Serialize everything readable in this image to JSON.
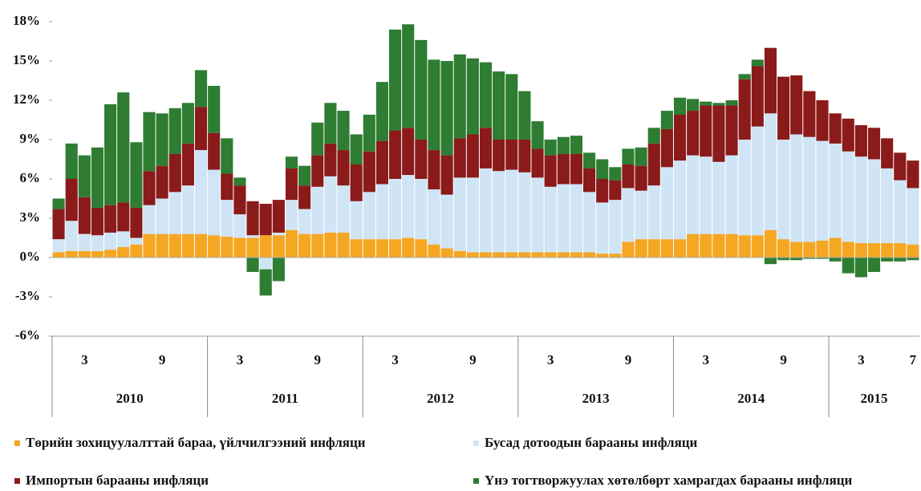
{
  "chart_data": {
    "type": "bar",
    "stacked": true,
    "categories": [
      null,
      null,
      "3",
      null,
      null,
      null,
      null,
      null,
      "9",
      null,
      null,
      null,
      null,
      null,
      "3",
      null,
      null,
      null,
      null,
      null,
      "9",
      null,
      null,
      null,
      null,
      null,
      "3",
      null,
      null,
      null,
      null,
      null,
      "9",
      null,
      null,
      null,
      null,
      null,
      "3",
      null,
      null,
      null,
      null,
      null,
      "9",
      null,
      null,
      null,
      null,
      null,
      "3",
      null,
      null,
      null,
      null,
      null,
      "9",
      null,
      null,
      null,
      null,
      null,
      "3",
      null,
      null,
      null,
      "7"
    ],
    "years": [
      "2010",
      "2011",
      "2012",
      "2013",
      "2014",
      "2015"
    ],
    "series": [
      {
        "name": "Төрийн зохицуулалттай бараа, үйлчилгээний инфляци",
        "color": "#f5a623",
        "values": [
          0.4,
          0.5,
          0.5,
          0.5,
          0.6,
          0.8,
          1.0,
          1.8,
          1.8,
          1.8,
          1.8,
          1.8,
          1.7,
          1.6,
          1.5,
          1.5,
          1.7,
          1.7,
          2.1,
          1.8,
          1.8,
          1.9,
          1.9,
          1.4,
          1.4,
          1.4,
          1.4,
          1.5,
          1.4,
          1.0,
          0.7,
          0.5,
          0.4,
          0.4,
          0.4,
          0.4,
          0.4,
          0.4,
          0.4,
          0.4,
          0.4,
          0.4,
          0.3,
          0.3,
          1.2,
          1.4,
          1.4,
          1.4,
          1.4,
          1.8,
          1.8,
          1.8,
          1.8,
          1.7,
          1.7,
          2.1,
          1.4,
          1.2,
          1.2,
          1.3,
          1.5,
          1.2,
          1.1,
          1.1,
          1.1,
          1.1,
          1.0
        ]
      },
      {
        "name": "Бусад дотоодын барааны инфляци",
        "color": "#cfe5f6",
        "values": [
          1.0,
          2.3,
          1.3,
          1.2,
          1.3,
          1.2,
          0.5,
          2.2,
          2.7,
          3.2,
          3.7,
          6.4,
          5.0,
          2.8,
          1.8,
          0.2,
          -0.9,
          0.2,
          2.3,
          1.9,
          3.6,
          4.3,
          3.6,
          2.9,
          3.6,
          4.2,
          4.6,
          4.8,
          4.6,
          4.2,
          4.1,
          5.6,
          5.7,
          6.4,
          6.2,
          6.3,
          6.1,
          5.7,
          5.0,
          5.2,
          5.2,
          4.6,
          3.9,
          4.1,
          4.1,
          3.7,
          4.1,
          5.5,
          6.0,
          6.0,
          5.9,
          5.5,
          6.0,
          7.3,
          8.3,
          8.9,
          7.6,
          8.2,
          8.0,
          7.6,
          7.2,
          6.9,
          6.6,
          6.4,
          5.7,
          4.8,
          4.3
        ]
      },
      {
        "name": "Импортын барааны инфляци",
        "color": "#8b1a1a",
        "values": [
          2.3,
          3.2,
          2.8,
          2.1,
          2.1,
          2.2,
          2.3,
          2.6,
          2.5,
          2.9,
          3.2,
          3.3,
          2.8,
          2.0,
          2.2,
          2.6,
          2.4,
          2.5,
          2.4,
          1.8,
          2.4,
          2.5,
          2.7,
          2.8,
          3.1,
          3.3,
          3.7,
          3.6,
          3.0,
          3.0,
          3.0,
          3.0,
          3.3,
          3.1,
          2.4,
          2.3,
          2.5,
          2.2,
          2.4,
          2.3,
          2.3,
          1.8,
          1.8,
          1.5,
          1.8,
          1.9,
          3.2,
          2.9,
          3.5,
          3.4,
          3.9,
          4.3,
          3.8,
          4.6,
          4.6,
          5.0,
          4.8,
          4.5,
          3.5,
          3.1,
          2.3,
          2.5,
          2.4,
          2.4,
          2.3,
          2.1,
          2.1
        ]
      },
      {
        "name": "Үнэ тогтворжуулах хөтөлбөрт хамрагдах барааны инфляци",
        "color": "#2e7d32",
        "values": [
          0.8,
          2.7,
          3.2,
          4.6,
          7.7,
          8.4,
          5.0,
          4.5,
          4.0,
          3.5,
          3.1,
          2.8,
          3.6,
          2.7,
          0.6,
          -1.1,
          -2.0,
          -1.8,
          0.9,
          1.5,
          2.5,
          3.1,
          3.0,
          2.3,
          2.8,
          4.5,
          7.7,
          7.9,
          7.6,
          6.9,
          7.2,
          6.4,
          5.8,
          5.0,
          5.2,
          5.0,
          3.7,
          2.1,
          1.2,
          1.3,
          1.4,
          1.2,
          1.5,
          1.0,
          1.2,
          1.4,
          1.2,
          1.4,
          1.3,
          0.9,
          0.3,
          0.2,
          0.4,
          0.4,
          0.5,
          -0.5,
          -0.2,
          -0.2,
          -0.1,
          -0.1,
          -0.3,
          -1.2,
          -1.5,
          -1.1,
          -0.3,
          -0.3,
          -0.2
        ]
      }
    ],
    "ylim": [
      -6,
      18
    ],
    "yticks": [
      {
        "value": -6,
        "label": "-6%"
      },
      {
        "value": -3,
        "label": "-3%"
      },
      {
        "value": 0,
        "label": "0%"
      },
      {
        "value": 3,
        "label": "3%"
      },
      {
        "value": 6,
        "label": "6%"
      },
      {
        "value": 9,
        "label": "9%"
      },
      {
        "value": 12,
        "label": "12%"
      },
      {
        "value": 15,
        "label": "15%"
      },
      {
        "value": 18,
        "label": "18%"
      }
    ],
    "grid": false,
    "legend": "bottom"
  }
}
